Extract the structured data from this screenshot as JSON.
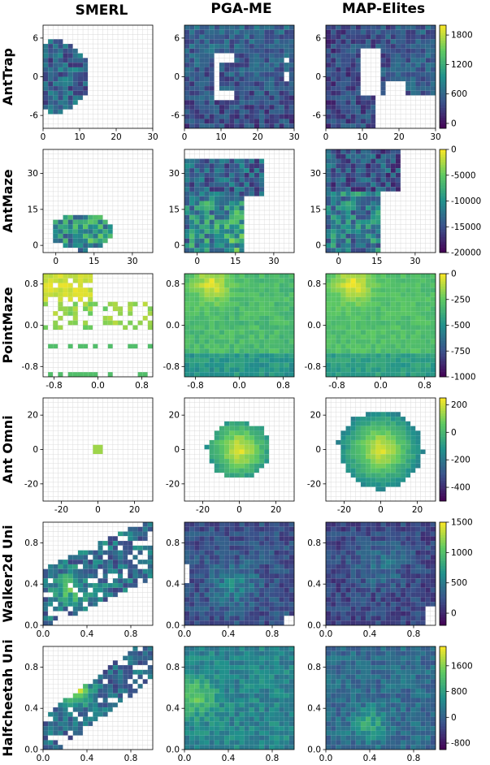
{
  "columns": [
    "SMERL",
    "PGA-ME",
    "MAP-Elites"
  ],
  "colormap": [
    "#440154",
    "#3b528b",
    "#21918c",
    "#5ec962",
    "#fde725"
  ],
  "empty_cell_color": "#ffffff",
  "cell_border_color": "#d9d9d9",
  "rows": [
    {
      "name": "AntTrap",
      "x_ticks": [
        0,
        10,
        20,
        30
      ],
      "y_ticks": [
        -6,
        0,
        6
      ],
      "xlim": [
        0,
        30
      ],
      "ylim": [
        -8,
        8
      ],
      "colorbar": {
        "ticks": [
          0,
          600,
          1200,
          1800
        ],
        "range": [
          -100,
          2000
        ]
      },
      "panels": [
        {
          "coverage": "small blob near origin (x 0-12)",
          "mean_value": 300
        },
        {
          "coverage": "full grid except C-shaped gap around trap",
          "mean_value": 400
        },
        {
          "coverage": "full grid except region behind trap",
          "mean_value": 400
        }
      ]
    },
    {
      "name": "AntMaze",
      "x_ticks": [
        0,
        15,
        30
      ],
      "y_ticks": [
        0,
        15,
        30
      ],
      "xlim": [
        -5,
        38
      ],
      "ylim": [
        -3,
        40
      ],
      "colorbar": {
        "ticks": [
          0,
          -5000,
          -10000,
          -15000,
          -20000
        ],
        "range": [
          -20000,
          0
        ]
      },
      "panels": [
        {
          "coverage": "small region near start",
          "mean_value": -14000
        },
        {
          "coverage": "left and top corridors",
          "mean_value": -12000
        },
        {
          "coverage": "left and top corridors",
          "mean_value": -13000
        }
      ]
    },
    {
      "name": "PointMaze",
      "x_ticks": [
        -0.8,
        0.0,
        0.8
      ],
      "y_ticks": [
        -0.8,
        0.0,
        0.8
      ],
      "xlim": [
        -1,
        1
      ],
      "ylim": [
        -1,
        1
      ],
      "colorbar": {
        "ticks": [
          0,
          -250,
          -500,
          -750,
          -1000
        ],
        "range": [
          -1000,
          0
        ]
      },
      "panels": [
        {
          "coverage": "scattered patches",
          "mean_value": -200
        },
        {
          "coverage": "full",
          "mean_value": -450
        },
        {
          "coverage": "full",
          "mean_value": -450
        }
      ]
    },
    {
      "name": "Ant Omni",
      "x_ticks": [
        -20,
        0,
        20
      ],
      "y_ticks": [
        -20,
        0,
        20
      ],
      "xlim": [
        -30,
        30
      ],
      "ylim": [
        -30,
        30
      ],
      "colorbar": {
        "ticks": [
          200,
          0,
          -200,
          -400
        ],
        "range": [
          -500,
          250
        ]
      },
      "panels": [
        {
          "coverage": "tiny dot at origin",
          "mean_value": 100
        },
        {
          "coverage": "disc radius ~15",
          "mean_value": -100
        },
        {
          "coverage": "disc radius ~22",
          "mean_value": -150
        }
      ]
    },
    {
      "name": "Walker2d Uni",
      "x_ticks": [
        0.0,
        0.4,
        0.8
      ],
      "y_ticks": [
        0.0,
        0.4,
        0.8
      ],
      "xlim": [
        0,
        1
      ],
      "ylim": [
        0,
        1
      ],
      "colorbar": {
        "ticks": [
          1500,
          1000,
          500,
          0
        ],
        "range": [
          -200,
          1500
        ]
      },
      "panels": [
        {
          "coverage": "partial band",
          "mean_value": 400
        },
        {
          "coverage": "almost full",
          "mean_value": 300
        },
        {
          "coverage": "almost full",
          "mean_value": 250
        }
      ]
    },
    {
      "name": "Halfcheetah Uni",
      "x_ticks": [
        0.0,
        0.4,
        0.8
      ],
      "y_ticks": [
        0.0,
        0.4,
        0.8
      ],
      "xlim": [
        0,
        1
      ],
      "ylim": [
        0,
        1
      ],
      "colorbar": {
        "ticks": [
          1600,
          800,
          0,
          -800
        ],
        "range": [
          -1000,
          2200
        ]
      },
      "panels": [
        {
          "coverage": "diagonal band",
          "mean_value": 600
        },
        {
          "coverage": "full",
          "mean_value": 500
        },
        {
          "coverage": "full",
          "mean_value": 200
        }
      ]
    }
  ],
  "chart_data": {
    "type": "heatmap",
    "title": "",
    "series": [
      {
        "name": "SMERL"
      },
      {
        "name": "PGA-ME"
      },
      {
        "name": "MAP-Elites"
      }
    ],
    "row_names": [
      "AntTrap",
      "AntMaze",
      "PointMaze",
      "Ant Omni",
      "Walker2d Uni",
      "Halfcheetah Uni"
    ]
  }
}
